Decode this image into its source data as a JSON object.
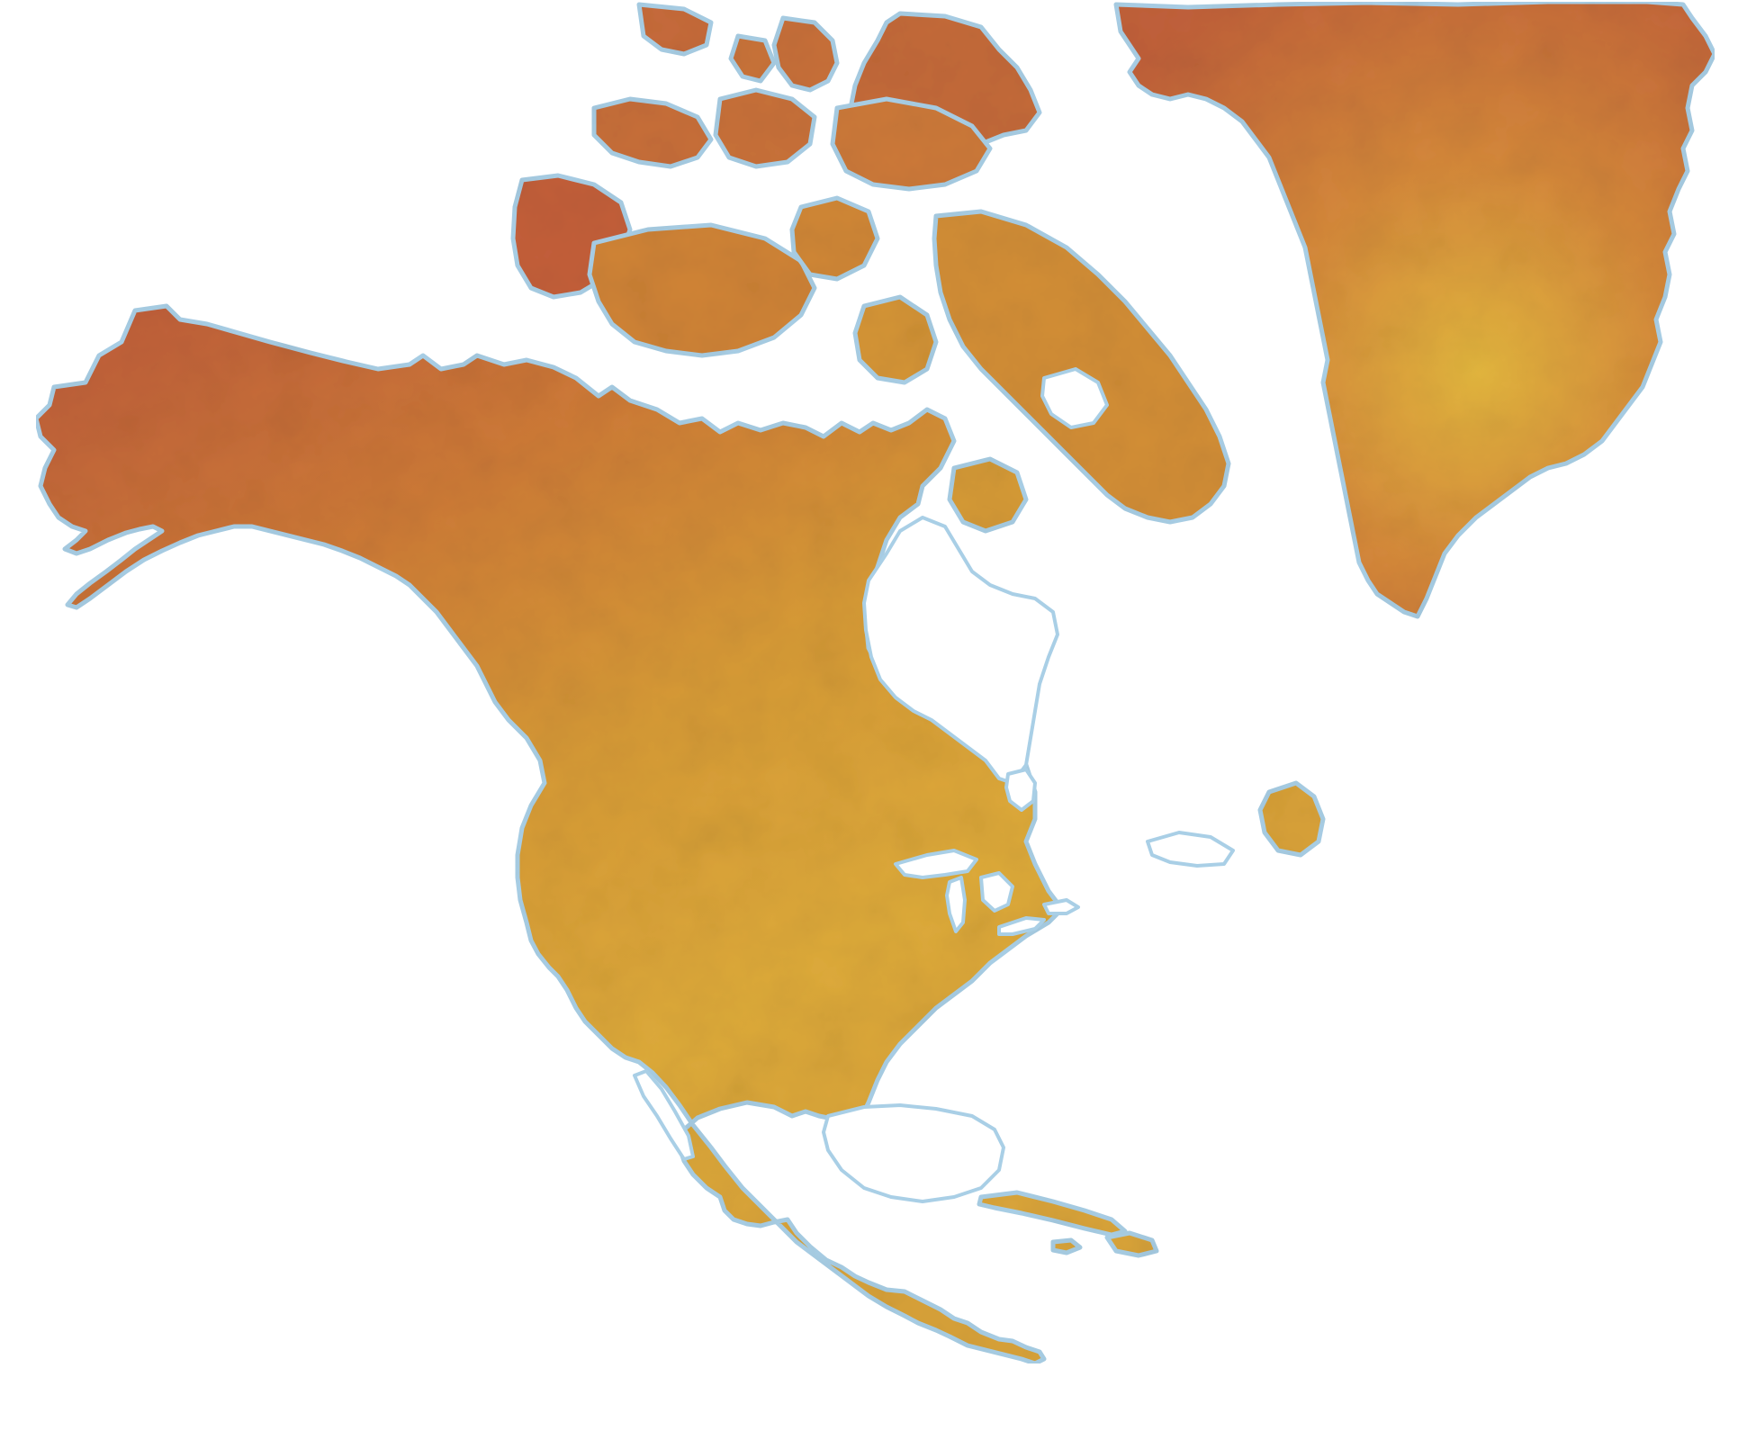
{
  "map": {
    "region": "North America",
    "style": "texture-filled continent silhouettes on white, light-blue coastline halo",
    "colors": {
      "background": "#ffffff",
      "coastline_glow": "#a9cfe6",
      "land_warm_red": "#c0623a",
      "land_orange": "#d48a35",
      "land_amber": "#d9a237",
      "land_gold": "#e3b83e",
      "lake": "#ffffff"
    },
    "labels": []
  }
}
